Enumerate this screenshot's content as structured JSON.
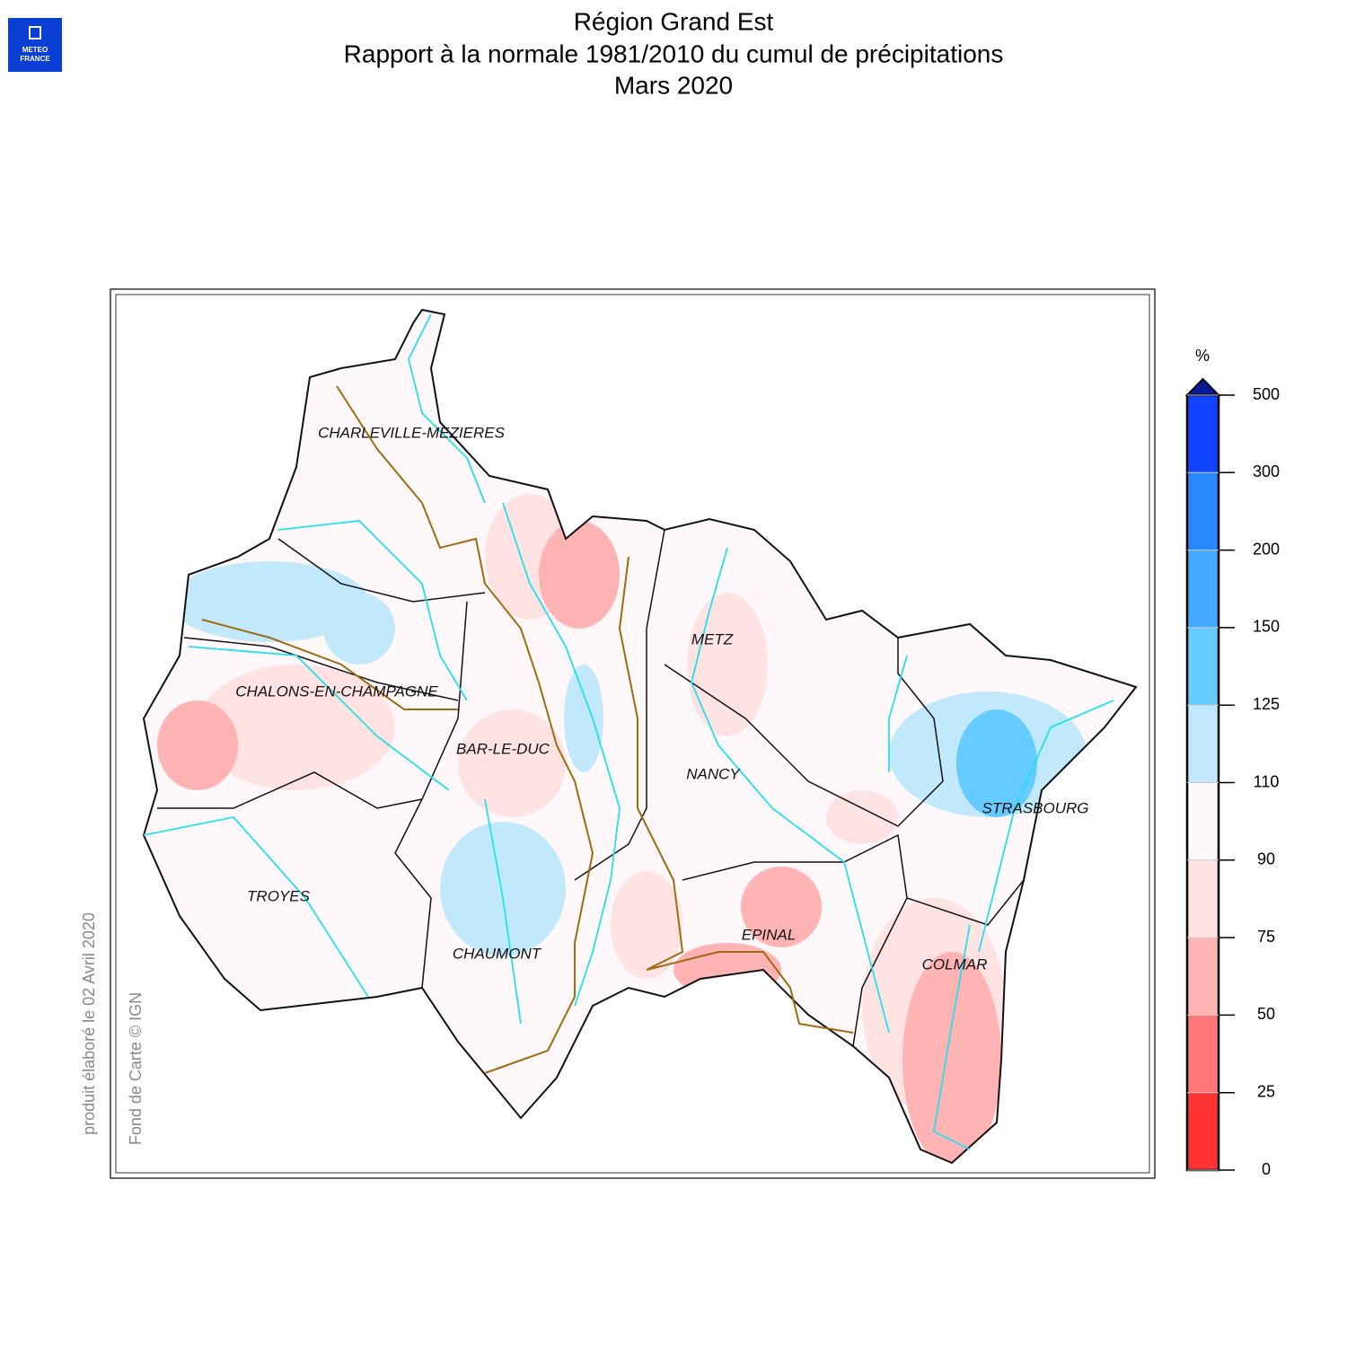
{
  "header": {
    "lines": [
      "Région Grand Est",
      "Rapport à la normale 1981/2010 du cumul de précipitations",
      "Mars 2020"
    ]
  },
  "logo": {
    "lines": [
      "METEO",
      "FRANCE"
    ]
  },
  "map": {
    "cities": [
      "CHARLEVILLE-MEZIERES",
      "CHALONS-EN-CHAMPAGNE",
      "BAR-LE-DUC",
      "METZ",
      "NANCY",
      "STRASBOURG",
      "TROYES",
      "CHAUMONT",
      "EPINAL",
      "COLMAR"
    ]
  },
  "legend": {
    "unit": "%",
    "ticks": [
      0,
      25,
      50,
      75,
      90,
      110,
      125,
      150,
      200,
      300,
      500
    ],
    "colors": [
      "#ff3333",
      "#ff7777",
      "#ffb3b3",
      "#ffe3e3",
      "#fff8fb",
      "#c2e8fc",
      "#66ccff",
      "#44aaff",
      "#2a88ff",
      "#1144ff"
    ],
    "over_color": "#0a1a9a"
  },
  "notes": [
    "produit élaboré le 02 Avril 2020",
    "Fond de Carte © IGN"
  ]
}
